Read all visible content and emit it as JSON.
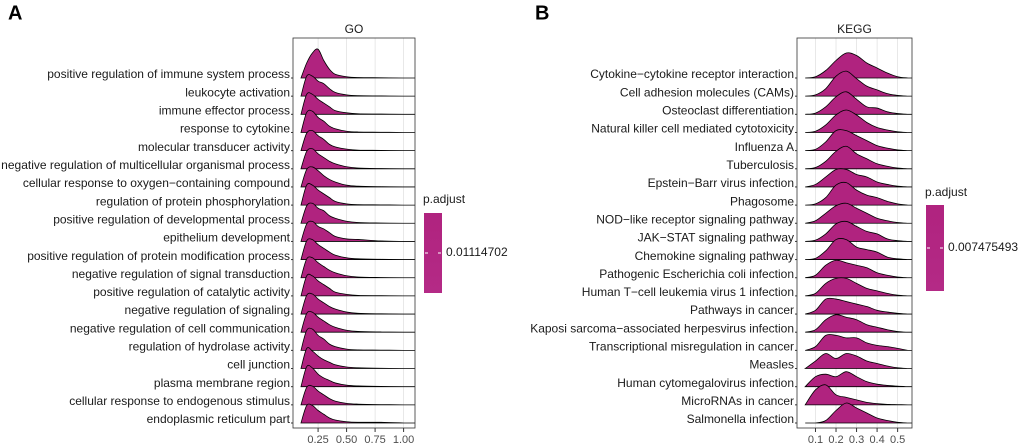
{
  "chart_data": [
    {
      "type": "ridgeline",
      "panel_label": "A",
      "title": "GO",
      "color": "#b0237f",
      "legend_title": "p.adjust",
      "legend_value": 0.01114702,
      "xlim": [
        0.03,
        1.1
      ],
      "xticks": [
        0.25,
        {
          "value": 0.5,
          "label": "0.50"
        },
        {
          "value": 0.75,
          "label": "0.75"
        },
        {
          "value": 1,
          "label": "1.00"
        }
      ],
      "grid": true,
      "categories": [
        "positive regulation of immune system process",
        "leukocyte activation",
        "immune effector process",
        "response to cytokine",
        "molecular transducer activity",
        "negative regulation of multicellular organismal process",
        "cellular response to oxygen−containing compound",
        "regulation of protein phosphorylation",
        "positive regulation of developmental process",
        "epithelium development",
        "positive regulation of protein modification process",
        "negative regulation of signal transduction",
        "positive regulation of catalytic activity",
        "negative regulation of signaling",
        "negative regulation of cell communication",
        "regulation of hydrolase activity",
        "cell junction",
        "plasma membrane region",
        "cellular response to endogenous stimulus",
        "endoplasmic reticulum part"
      ],
      "x": [
        0.1,
        0.15,
        0.2,
        0.25,
        0.3,
        0.35,
        0.4,
        0.5,
        0.6,
        0.8,
        1.0
      ],
      "values": [
        [
          0,
          6,
          10,
          11.5,
          7,
          3.5,
          1.5,
          0.5,
          0.2,
          0.1,
          0
        ],
        [
          0,
          8,
          8,
          6,
          5,
          3,
          1.5,
          0.5,
          0.2,
          0.1,
          0
        ],
        [
          0,
          8,
          8,
          6,
          4.5,
          3,
          1.5,
          0.6,
          0.2,
          0.1,
          0
        ],
        [
          0,
          8,
          8.5,
          6,
          4.5,
          2.5,
          1.5,
          0.5,
          0.2,
          0.1,
          0
        ],
        [
          0,
          7,
          8,
          6,
          4.5,
          2.5,
          1.5,
          0.6,
          0.2,
          0.1,
          0
        ],
        [
          0,
          7,
          8,
          6,
          4.5,
          3,
          2,
          0.8,
          0.3,
          0.1,
          0
        ],
        [
          0,
          7,
          8,
          6.5,
          4.5,
          3,
          2,
          0.7,
          0.3,
          0.1,
          0
        ],
        [
          0,
          8,
          8,
          6,
          4.5,
          3,
          1.5,
          0.5,
          0.2,
          0.1,
          0
        ],
        [
          0,
          7,
          8,
          6,
          5,
          3,
          2,
          0.8,
          0.3,
          0.1,
          0
        ],
        [
          0,
          7,
          8,
          6,
          5,
          3.5,
          2,
          1,
          0.8,
          0.2,
          0
        ],
        [
          0,
          7.5,
          8,
          6,
          4.5,
          3,
          1.8,
          0.7,
          0.3,
          0.1,
          0
        ],
        [
          0,
          7.5,
          8,
          6,
          4.5,
          3,
          2,
          0.8,
          0.3,
          0.1,
          0
        ],
        [
          0,
          8,
          8,
          6,
          4.5,
          3,
          1.5,
          0.6,
          0.2,
          0.1,
          0
        ],
        [
          0,
          7.5,
          8,
          6,
          4.5,
          3,
          2,
          0.8,
          0.3,
          0.1,
          0
        ],
        [
          0,
          7.5,
          8,
          6,
          4.5,
          3,
          2,
          0.8,
          0.3,
          0.1,
          0
        ],
        [
          0,
          8,
          8.5,
          6,
          4.5,
          2.5,
          1.5,
          0.5,
          0.2,
          0.1,
          0
        ],
        [
          0,
          8,
          7,
          5,
          3.5,
          2.5,
          1.5,
          0.6,
          0.3,
          0.1,
          0
        ],
        [
          0,
          8,
          7.5,
          5,
          3.5,
          2.5,
          1.5,
          0.6,
          0.3,
          0.1,
          0
        ],
        [
          0,
          7,
          7.5,
          5.5,
          4,
          2.5,
          1.5,
          0.6,
          0.3,
          0.1,
          0
        ],
        [
          0,
          7,
          7,
          5,
          3.5,
          2,
          1.2,
          0.5,
          0.3,
          0.3,
          0
        ]
      ]
    },
    {
      "type": "ridgeline",
      "panel_label": "B",
      "title": "KEGG",
      "color": "#b0237f",
      "legend_title": "p.adjust",
      "legend_value": 0.007475493,
      "xlim": [
        0.01,
        0.57
      ],
      "xticks": [
        0.1,
        0.2,
        0.3,
        0.4,
        0.5
      ],
      "grid": true,
      "categories": [
        "Cytokine−cytokine receptor interaction",
        "Cell adhesion molecules (CAMs)",
        "Osteoclast differentiation",
        "Natural killer cell mediated cytotoxicity",
        "Influenza A",
        "Tuberculosis",
        "Epstein−Barr virus infection",
        "Phagosome",
        "NOD−like receptor signaling pathway",
        "JAK−STAT signaling pathway",
        "Chemokine signaling pathway",
        "Pathogenic Escherichia coli infection",
        "Human T−cell leukemia virus 1 infection",
        "Pathways in cancer",
        "Kaposi sarcoma−associated herpesvirus infection",
        "Transcriptional misregulation in cancer",
        "Measles",
        "Human cytomegalovirus infection",
        "MicroRNAs in cancer",
        "Salmonella infection"
      ],
      "x": [
        0.05,
        0.1,
        0.15,
        0.2,
        0.25,
        0.3,
        0.35,
        0.4,
        0.45,
        0.5,
        0.55
      ],
      "values": [
        [
          0,
          0.5,
          3,
          7,
          10,
          9,
          6,
          4,
          2,
          0.5,
          0
        ],
        [
          0,
          0.5,
          3,
          8,
          10,
          7,
          4,
          2.5,
          1,
          0.3,
          0
        ],
        [
          0,
          0.5,
          3,
          7,
          9,
          6,
          3,
          2.5,
          1,
          0.3,
          0
        ],
        [
          0,
          0.5,
          3,
          7,
          9,
          7,
          4,
          2,
          1,
          0.3,
          0
        ],
        [
          0,
          0.5,
          3.5,
          8,
          8,
          6,
          4,
          2,
          1,
          0.3,
          0
        ],
        [
          0,
          0.5,
          3,
          7,
          9,
          6,
          4,
          2,
          1,
          0.3,
          0
        ],
        [
          0,
          1,
          4,
          7,
          7,
          5,
          4,
          2,
          1,
          0.3,
          0
        ],
        [
          0,
          0.5,
          3,
          8,
          9,
          6,
          4,
          3,
          1.5,
          0.5,
          0
        ],
        [
          0,
          1,
          4,
          7,
          8,
          6,
          4,
          2,
          1,
          0.3,
          0
        ],
        [
          0,
          0.5,
          3,
          7,
          8,
          6,
          4,
          3,
          1,
          0.3,
          0
        ],
        [
          0,
          0.5,
          3.5,
          8,
          8,
          5,
          4,
          3,
          1,
          0.3,
          0
        ],
        [
          0,
          1,
          5,
          7,
          6,
          5,
          4,
          2,
          1,
          0.3,
          0
        ],
        [
          0,
          1,
          5,
          7,
          7,
          5,
          3,
          2,
          1,
          0.3,
          0
        ],
        [
          0,
          1.5,
          6,
          6,
          5,
          4,
          3,
          1.5,
          0.8,
          0.3,
          0
        ],
        [
          0,
          1,
          5,
          7,
          6,
          5,
          3,
          2,
          1,
          0.3,
          0
        ],
        [
          0,
          1.5,
          6,
          6,
          5,
          5,
          3,
          2,
          1.5,
          0.8,
          0
        ],
        [
          0,
          3,
          6,
          4,
          6,
          5,
          3,
          2,
          1,
          0.3,
          0
        ],
        [
          0,
          4,
          5,
          4,
          6,
          4,
          2,
          1,
          0.5,
          0.2,
          0
        ],
        [
          0,
          6,
          8,
          4,
          3,
          2,
          1,
          0.5,
          0.2,
          0.1,
          0
        ],
        [
          0,
          0,
          1,
          5,
          8,
          6,
          4,
          2,
          1,
          0.3,
          0
        ]
      ]
    }
  ]
}
